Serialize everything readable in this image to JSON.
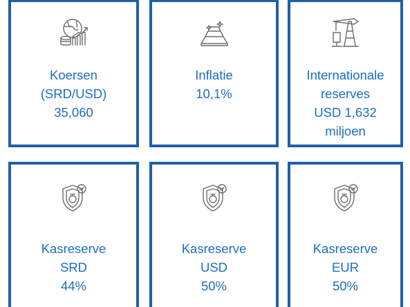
{
  "cards": [
    {
      "lines": [
        "Koersen",
        "(SRD/USD)",
        "35,060"
      ]
    },
    {
      "lines": [
        "Inflatie",
        "10,1%"
      ]
    },
    {
      "lines": [
        "Internationale",
        "reserves",
        "USD 1,632",
        "miljoen"
      ]
    },
    {
      "lines": [
        "Kasreserve",
        "SRD",
        "44%"
      ]
    },
    {
      "lines": [
        "Kasreserve",
        "USD",
        "50%"
      ]
    },
    {
      "lines": [
        "Kasreserve",
        "EUR",
        "50%"
      ]
    }
  ]
}
